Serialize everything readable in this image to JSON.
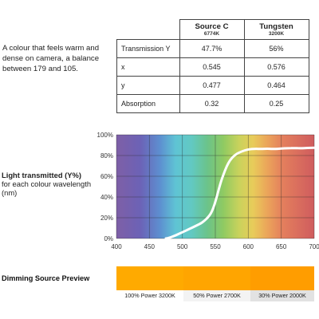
{
  "description": "A colour that feels warm and dense on camera, a balance between 179 and 105.",
  "table": {
    "columns": [
      {
        "name": "Source C",
        "temp": "6774K"
      },
      {
        "name": "Tungsten",
        "temp": "3200K"
      }
    ],
    "rows": [
      {
        "label": "Transmission Y",
        "values": [
          "47.7%",
          "56%"
        ]
      },
      {
        "label": "x",
        "values": [
          "0.545",
          "0.576"
        ]
      },
      {
        "label": "y",
        "values": [
          "0.477",
          "0.464"
        ]
      },
      {
        "label": "Absorption",
        "values": [
          "0.32",
          "0.25"
        ]
      }
    ]
  },
  "chart": {
    "title_bold": "Light transmitted (Y%)",
    "title_sub": "for each colour wavelength (nm)"
  },
  "chart_data": {
    "type": "line",
    "x": [
      475,
      480,
      490,
      500,
      510,
      520,
      530,
      540,
      545,
      550,
      555,
      560,
      570,
      580,
      590,
      600,
      610,
      620,
      630,
      640,
      650,
      660,
      670,
      680,
      690,
      700
    ],
    "series": [
      {
        "values": [
          0,
          0.5,
          3,
          6,
          9,
          12,
          15,
          21,
          26,
          35,
          47,
          58,
          74,
          81,
          84,
          86,
          86.5,
          86.3,
          86.6,
          86.2,
          86.8,
          87,
          87.2,
          87,
          87.3,
          87.5
        ]
      }
    ],
    "xticks": [
      "400",
      "450",
      "500",
      "550",
      "600",
      "650",
      "700"
    ],
    "yticks": [
      "0%",
      "20%",
      "40%",
      "60%",
      "80%",
      "100%"
    ],
    "xlim": [
      400,
      700
    ],
    "ylim": [
      0,
      100
    ],
    "grid": true,
    "line_color": "#ffffff",
    "background": "visible spectrum gradient (violet to red)"
  },
  "dimming": {
    "title": "Dimming Source Preview",
    "items": [
      {
        "label": "100% Power 3200K",
        "color": "#FFAA00",
        "label_bg": "#ffffff"
      },
      {
        "label": "50% Power 2700K",
        "color": "#FFA500",
        "label_bg": "#f3f3f3"
      },
      {
        "label": "30% Power 2000K",
        "color": "#FF9D00",
        "label_bg": "#e2e2e2"
      }
    ]
  }
}
